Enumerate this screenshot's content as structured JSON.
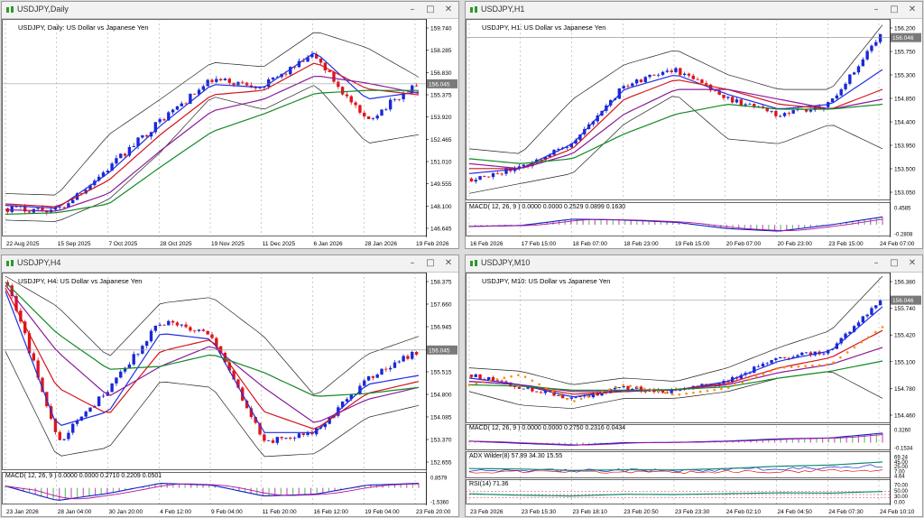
{
  "colors": {
    "bull": "#1a28d6",
    "bear": "#e0141c",
    "bb": "#222222",
    "ma_blue": "#1f2fe0",
    "ma_red": "#d4141c",
    "ma_purple": "#8a1c9c",
    "ma_green": "#138a24",
    "sar": "#ff8c00",
    "grid": "#9a9a9a",
    "price_line": "#888888"
  },
  "windows": [
    {
      "title": "USDJPY,Daily",
      "legend": "USDJPY, Daily:  US Dollar vs Japanese Yen",
      "price_label": "156.045",
      "price_ticks": [
        "159.740",
        "158.285",
        "156.830",
        "155.375",
        "153.920",
        "152.465",
        "151.010",
        "149.555",
        "148.100",
        "146.645"
      ],
      "time_ticks": [
        "22 Aug 2025",
        "15 Sep 2025",
        "7 Oct 2025",
        "28 Oct 2025",
        "19 Nov 2025",
        "11 Dec 2025",
        "6 Jan 2026",
        "28 Jan 2026",
        "19 Feb 2026"
      ]
    },
    {
      "title": "USDJPY,H1",
      "legend": "USDJPY, H1:  US Dollar vs Japanese Yen",
      "price_label": "156.046",
      "price_ticks": [
        "156.200",
        "155.750",
        "155.300",
        "154.850",
        "154.400",
        "153.950",
        "153.500",
        "153.050"
      ],
      "macd_label": "MACD( 12, 26, 9 ) 0.0000 0.0000 0.2529 0.0899 0.1630",
      "macd_ticks": [
        "0.4585",
        "-0.2808"
      ],
      "time_ticks": [
        "16 Feb 2026",
        "17 Feb 15:00",
        "18 Feb 07:00",
        "18 Feb 23:00",
        "19 Feb 15:00",
        "20 Feb 07:00",
        "20 Feb 23:00",
        "23 Feb 15:00",
        "24 Feb 07:00"
      ]
    },
    {
      "title": "USDJPY,H4",
      "legend": "USDJPY, H4:  US Dollar vs Japanese Yen",
      "price_label": "156.045",
      "price_ticks": [
        "158.375",
        "157.660",
        "156.945",
        "156.230",
        "155.515",
        "154.800",
        "154.085",
        "153.370",
        "152.655"
      ],
      "macd_label": "MACD( 12, 26, 9 ) 0.0000 0.0000 0.2710 0.2209 0.0501",
      "macd_ticks": [
        "0.8579",
        "-1.5360"
      ],
      "time_ticks": [
        "23 Jan 2026",
        "28 Jan 04:00",
        "30 Jan 20:00",
        "4 Feb 12:00",
        "9 Feb 04:00",
        "11 Feb 20:00",
        "16 Feb 12:00",
        "19 Feb 04:00",
        "23 Feb 20:00"
      ]
    },
    {
      "title": "USDJPY,M10",
      "legend": "USDJPY, M10:  US Dollar vs Japanese Yen",
      "price_label": "156.046",
      "price_ticks": [
        "156.380",
        "155.740",
        "155.420",
        "155.100",
        "154.780",
        "154.460"
      ],
      "macd_label": "MACD( 12, 26, 9 ) 0.0000 0.0000 0.2750 0.2316 0.0434",
      "macd_ticks": [
        "0.3260",
        "-0.1534"
      ],
      "adx_label": "ADX Wilder(8) 57.89 34.30 15.55",
      "adx_ticks": [
        "69.24",
        "45.00",
        "25.00",
        "7.00",
        "4.64"
      ],
      "rsi_label": "RSI(14) 71.36",
      "rsi_ticks": [
        "70.00",
        "50.00",
        "30.00",
        "0.00"
      ],
      "time_ticks": [
        "23 Feb 2026",
        "23 Feb 15:30",
        "23 Feb 18:10",
        "23 Feb 20:50",
        "23 Feb 23:30",
        "24 Feb 02:10",
        "24 Feb 04:50",
        "24 Feb 07:30",
        "24 Feb 10:10"
      ]
    }
  ],
  "chart_data": [
    {
      "type": "candlestick",
      "symbol": "USDJPY",
      "timeframe": "Daily",
      "last": 156.045,
      "ylim": [
        146.0,
        160.2
      ],
      "x": [
        "22 Aug 2025",
        "15 Sep 2025",
        "7 Oct 2025",
        "28 Oct 2025",
        "19 Nov 2025",
        "11 Dec 2025",
        "6 Jan 2026",
        "28 Jan 2026",
        "19 Feb 2026"
      ],
      "close": [
        147.6,
        147.5,
        150.4,
        153.6,
        156.3,
        155.9,
        158.0,
        153.5,
        156.0
      ],
      "series": [
        {
          "name": "BB Upper",
          "values": [
            148.6,
            148.5,
            152.6,
            155.0,
            157.5,
            157.2,
            159.6,
            158.5,
            156.5
          ]
        },
        {
          "name": "BB Lower",
          "values": [
            146.8,
            146.7,
            148.2,
            151.4,
            155.2,
            154.3,
            156.0,
            152.0,
            152.6
          ]
        },
        {
          "name": "MA Blue",
          "values": [
            147.8,
            147.6,
            150.0,
            153.2,
            156.0,
            155.8,
            158.2,
            155.0,
            155.5
          ]
        },
        {
          "name": "MA Red",
          "values": [
            147.9,
            147.7,
            149.5,
            152.6,
            155.3,
            155.6,
            157.5,
            155.7,
            155.3
          ]
        },
        {
          "name": "MA Purple",
          "values": [
            147.5,
            147.4,
            148.6,
            151.5,
            154.2,
            155.0,
            156.6,
            156.1,
            155.4
          ]
        },
        {
          "name": "MA Green",
          "values": [
            147.2,
            147.3,
            147.9,
            150.4,
            152.8,
            154.0,
            155.4,
            155.6,
            155.6
          ]
        }
      ]
    },
    {
      "type": "candlestick",
      "symbol": "USDJPY",
      "timeframe": "H1",
      "last": 156.046,
      "ylim": [
        152.85,
        156.35
      ],
      "x": [
        "16 Feb 2026",
        "17 Feb 15:00",
        "18 Feb 07:00",
        "18 Feb 23:00",
        "19 Feb 15:00",
        "20 Feb 07:00",
        "20 Feb 23:00",
        "23 Feb 15:00",
        "24 Feb 07:00"
      ],
      "close": [
        153.2,
        153.45,
        153.9,
        155.1,
        155.4,
        154.8,
        154.5,
        154.7,
        156.1
      ],
      "series": [
        {
          "name": "BB Upper",
          "values": [
            153.8,
            153.7,
            154.8,
            155.5,
            155.8,
            155.3,
            155.0,
            155.0,
            156.3
          ]
        },
        {
          "name": "BB Lower",
          "values": [
            152.9,
            153.1,
            153.3,
            154.3,
            154.9,
            154.0,
            153.9,
            154.3,
            153.8
          ]
        },
        {
          "name": "MA Blue",
          "values": [
            153.3,
            153.4,
            153.9,
            155.0,
            155.3,
            154.9,
            154.6,
            154.7,
            155.4
          ]
        },
        {
          "name": "MA Red",
          "values": [
            153.4,
            153.4,
            153.8,
            154.8,
            155.2,
            155.0,
            154.7,
            154.6,
            155.0
          ]
        },
        {
          "name": "MA Purple",
          "values": [
            153.5,
            153.4,
            153.7,
            154.5,
            155.0,
            155.0,
            154.8,
            154.6,
            154.8
          ]
        },
        {
          "name": "MA Green",
          "values": [
            153.6,
            153.5,
            153.6,
            154.1,
            154.5,
            154.7,
            154.6,
            154.6,
            154.7
          ]
        }
      ],
      "macd": {
        "ylim": [
          -0.2808,
          0.4585
        ],
        "values": [
          -0.05,
          -0.02,
          0.18,
          0.15,
          0.08,
          -0.12,
          -0.2,
          0.0,
          0.25
        ]
      }
    },
    {
      "type": "candlestick",
      "symbol": "USDJPY",
      "timeframe": "H4",
      "last": 156.045,
      "ylim": [
        152.2,
        158.5
      ],
      "x": [
        "23 Jan 2026",
        "28 Jan 04:00",
        "30 Jan 20:00",
        "4 Feb 12:00",
        "9 Feb 04:00",
        "11 Feb 20:00",
        "16 Feb 12:00",
        "19 Feb 04:00",
        "23 Feb 20:00"
      ],
      "close": [
        158.3,
        153.0,
        154.8,
        157.0,
        156.5,
        153.0,
        153.3,
        155.0,
        156.0
      ],
      "series": [
        {
          "name": "BB Upper",
          "values": [
            158.5,
            157.5,
            155.8,
            157.6,
            157.8,
            156.5,
            154.5,
            155.9,
            156.5
          ]
        },
        {
          "name": "BB Lower",
          "values": [
            156.0,
            152.5,
            152.8,
            155.0,
            154.8,
            152.5,
            152.6,
            153.8,
            154.2
          ]
        },
        {
          "name": "MA Blue",
          "values": [
            158.0,
            153.5,
            154.0,
            156.6,
            156.4,
            153.3,
            153.3,
            154.9,
            155.2
          ]
        },
        {
          "name": "MA Red",
          "values": [
            158.1,
            154.8,
            153.9,
            156.0,
            156.4,
            154.0,
            153.4,
            154.6,
            155.0
          ]
        },
        {
          "name": "MA Purple",
          "values": [
            158.2,
            156.0,
            154.5,
            155.5,
            156.2,
            154.8,
            153.6,
            154.4,
            154.8
          ]
        },
        {
          "name": "MA Green",
          "values": [
            158.3,
            156.6,
            155.4,
            155.5,
            155.9,
            155.3,
            154.5,
            154.6,
            154.8
          ]
        }
      ],
      "macd": {
        "ylim": [
          -1.536,
          0.8579
        ],
        "values": [
          0.2,
          -1.4,
          -0.6,
          0.5,
          0.3,
          -0.9,
          -0.7,
          0.3,
          0.5
        ]
      }
    },
    {
      "type": "candlestick",
      "symbol": "USDJPY",
      "timeframe": "M10",
      "last": 156.046,
      "ylim": [
        154.3,
        156.4
      ],
      "x": [
        "23 Feb 2026",
        "23 Feb 15:30",
        "23 Feb 18:10",
        "23 Feb 20:50",
        "23 Feb 23:30",
        "24 Feb 02:10",
        "24 Feb 04:50",
        "24 Feb 07:30",
        "24 Feb 10:10"
      ],
      "close": [
        154.95,
        154.75,
        154.6,
        154.75,
        154.7,
        154.85,
        155.2,
        155.3,
        156.05
      ],
      "series": [
        {
          "name": "BB Upper",
          "values": [
            155.05,
            155.0,
            154.8,
            154.9,
            154.85,
            155.05,
            155.35,
            155.6,
            156.4
          ]
        },
        {
          "name": "BB Lower",
          "values": [
            154.7,
            154.5,
            154.45,
            154.6,
            154.6,
            154.7,
            154.9,
            155.0,
            154.6
          ]
        },
        {
          "name": "MA Blue",
          "values": [
            154.9,
            154.8,
            154.62,
            154.72,
            154.72,
            154.85,
            155.15,
            155.3,
            155.95
          ]
        },
        {
          "name": "MA Red",
          "values": [
            154.85,
            154.8,
            154.66,
            154.7,
            154.73,
            154.82,
            155.05,
            155.2,
            155.6
          ]
        },
        {
          "name": "MA Purple",
          "values": [
            154.85,
            154.8,
            154.7,
            154.7,
            154.73,
            154.8,
            154.98,
            155.1,
            155.35
          ]
        },
        {
          "name": "MA Green",
          "values": [
            154.8,
            154.78,
            154.72,
            154.72,
            154.73,
            154.77,
            154.9,
            155.0,
            155.15
          ]
        },
        {
          "name": "Parabolic SAR",
          "values": [
            154.8,
            154.95,
            154.55,
            154.8,
            154.65,
            154.75,
            155.05,
            155.1,
            155.65
          ]
        }
      ],
      "macd": {
        "ylim": [
          -0.1534,
          0.326
        ],
        "values": [
          0.05,
          -0.02,
          -0.08,
          0.0,
          0.01,
          0.05,
          0.12,
          0.15,
          0.3
        ]
      },
      "adx": {
        "ylim": [
          0,
          69.24
        ],
        "values": [
          30,
          28,
          22,
          25,
          24,
          30,
          40,
          45,
          58
        ]
      },
      "rsi": {
        "ylim": [
          0,
          100
        ],
        "values": [
          55,
          45,
          40,
          52,
          50,
          56,
          62,
          60,
          71.36
        ]
      }
    }
  ]
}
